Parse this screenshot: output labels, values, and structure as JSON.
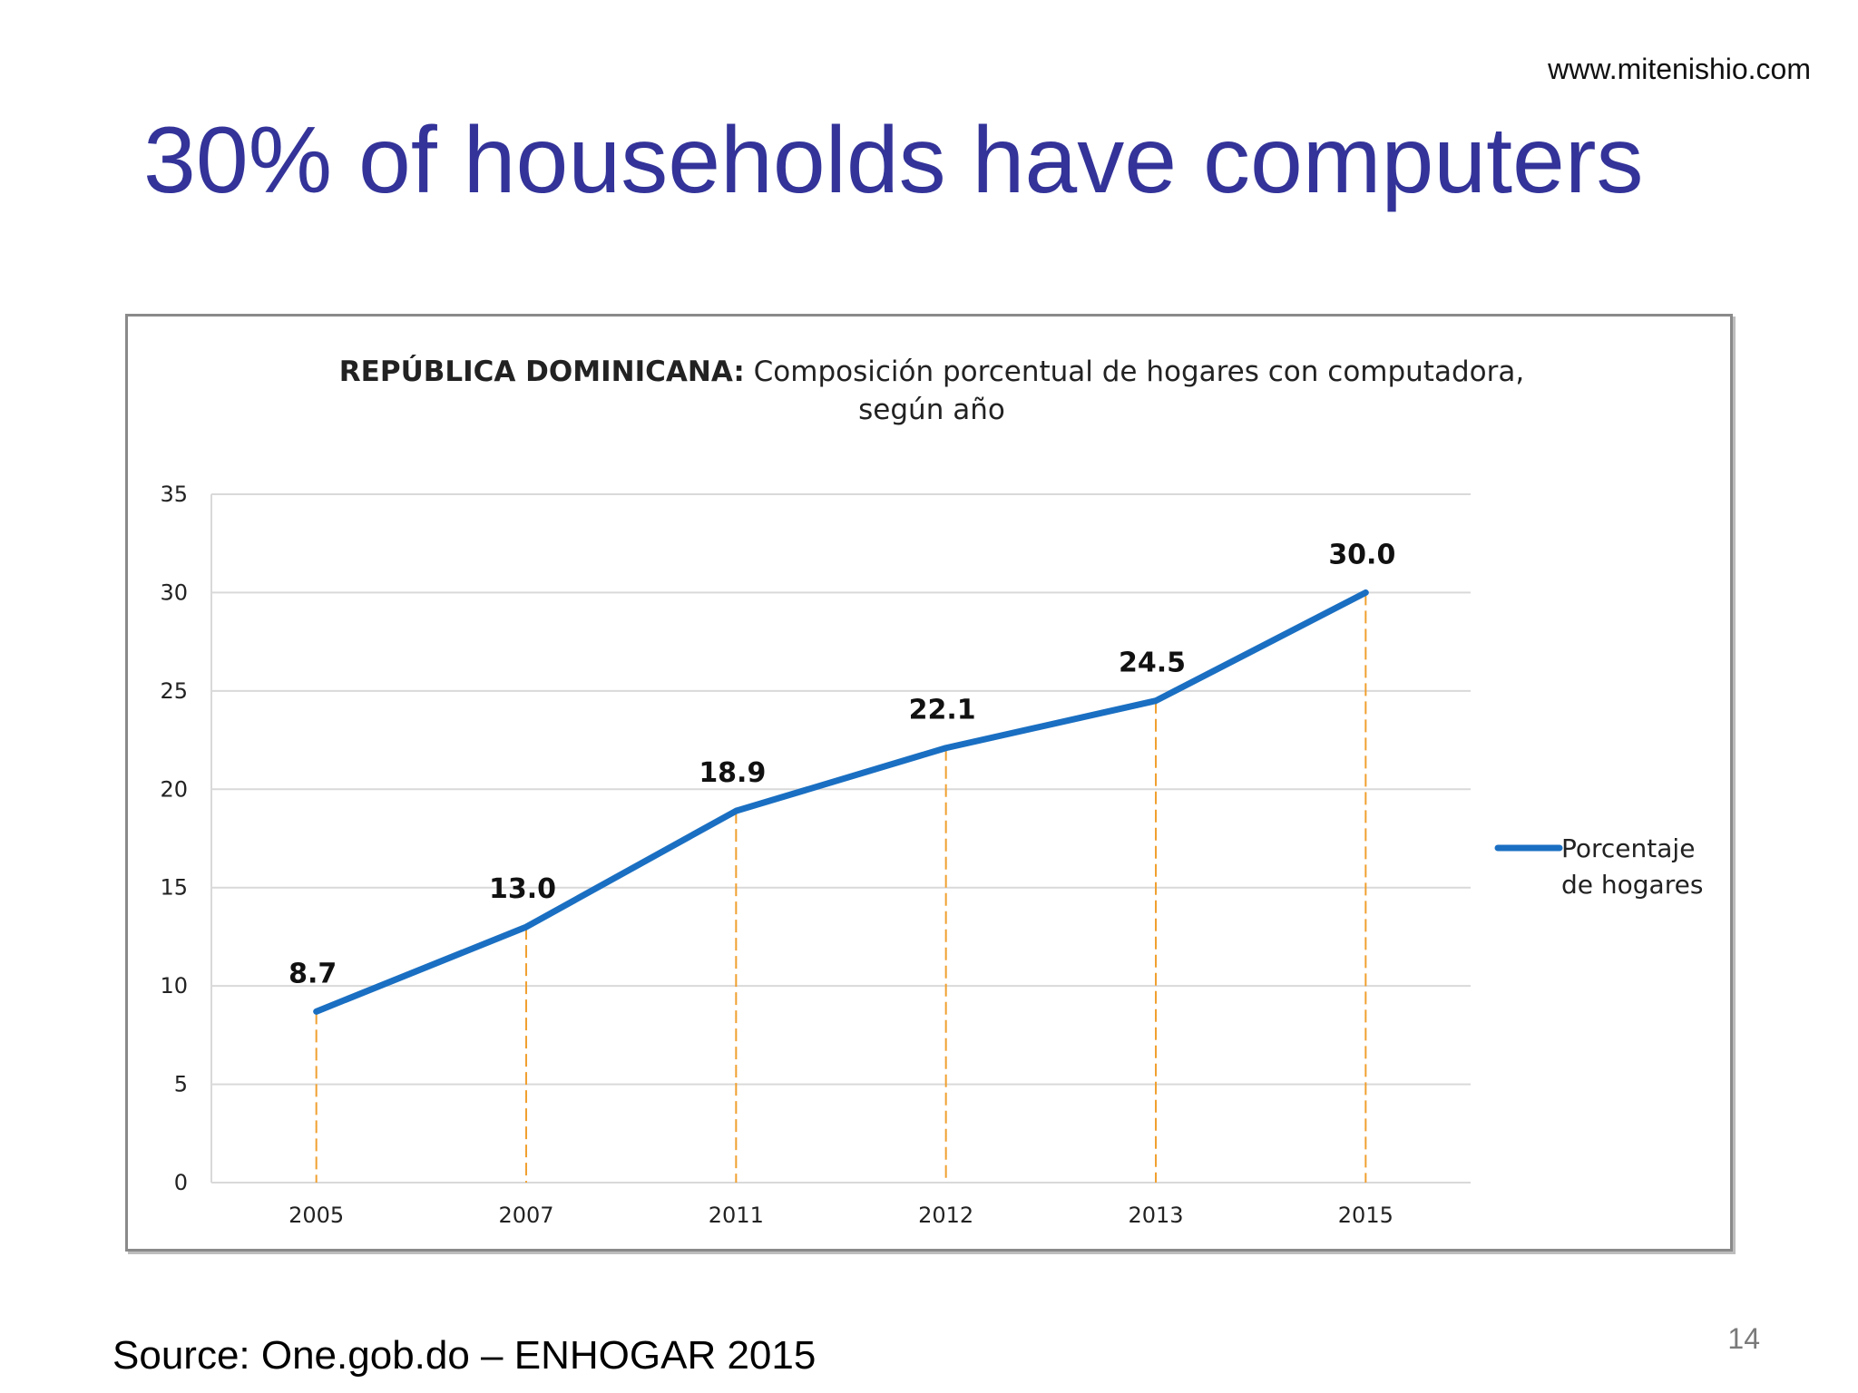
{
  "header": {
    "website": "www.mitenishio.com",
    "title": "30% of households have computers"
  },
  "footer": {
    "source": "Source:  One.gob.do – ENHOGAR 2015",
    "page_number": "14"
  },
  "colors": {
    "title": "#333399",
    "series_line": "#1a6fc2",
    "drop_lines": "#f0a030",
    "gridlines": "#d9d9d9"
  },
  "chart_data": {
    "type": "line",
    "title_bold": "REPÚBLICA DOMINICANA:",
    "title_rest": " Composición porcentual de hogares con computadora,",
    "title_line2": "según año",
    "categories": [
      "2005",
      "2007",
      "2011",
      "2012",
      "2013",
      "2015"
    ],
    "series": [
      {
        "name": "Porcentaje de hogares",
        "name_lines": [
          "Porcentaje",
          "de hogares"
        ],
        "values": [
          8.7,
          13.0,
          18.9,
          22.1,
          24.5,
          30.0
        ],
        "labels": [
          "8.7",
          "13.0",
          "18.9",
          "22.1",
          "24.5",
          "30.0"
        ]
      }
    ],
    "ylim": [
      0,
      35
    ],
    "yticks": [
      "0",
      "5",
      "10",
      "15",
      "20",
      "25",
      "30",
      "35"
    ],
    "grid": true,
    "drop_lines": true,
    "legend_position": "right"
  }
}
